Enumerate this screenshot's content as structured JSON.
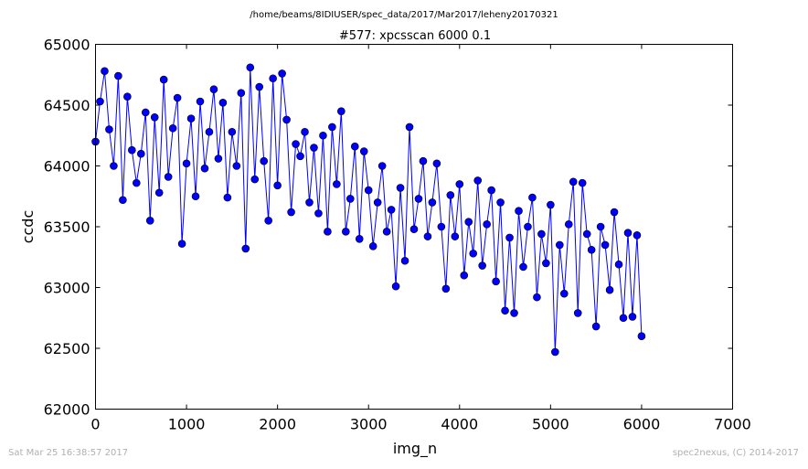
{
  "figure": {
    "suptitle": "/home/beams/8IDIUSER/spec_data/2017/Mar2017/leheny20170321",
    "footer_left": "Sat Mar 25 16:38:57 2017",
    "footer_right": "spec2nexus, (C) 2014-2017"
  },
  "colors": {
    "series": "#0000ff",
    "frame": "#000000",
    "footer": "#b0b0b0"
  },
  "chart_data": {
    "type": "line",
    "title": "#577: xpcsscan 6000 0.1",
    "xlabel": "img_n",
    "ylabel": "ccdc",
    "xlim": [
      0,
      7000
    ],
    "ylim": [
      62000,
      65000
    ],
    "xticks": [
      0,
      1000,
      2000,
      3000,
      4000,
      5000,
      6000,
      7000
    ],
    "yticks": [
      62000,
      62500,
      63000,
      63500,
      64000,
      64500,
      65000
    ],
    "grid": false,
    "marker": "circle",
    "series": [
      {
        "x": [
          0,
          50,
          100,
          150,
          200,
          250,
          300,
          350,
          400,
          450,
          500,
          550,
          600,
          650,
          700,
          750,
          800,
          850,
          900,
          950,
          1000,
          1050,
          1100,
          1150,
          1200,
          1250,
          1300,
          1350,
          1400,
          1450,
          1500,
          1550,
          1600,
          1650,
          1700,
          1750,
          1800,
          1850,
          1900,
          1950,
          2000,
          2050,
          2100,
          2150,
          2200,
          2250,
          2300,
          2350,
          2400,
          2450,
          2500,
          2550,
          2600,
          2650,
          2700,
          2750,
          2800,
          2850,
          2900,
          2950,
          3000,
          3050,
          3100,
          3150,
          3200,
          3250,
          3300,
          3350,
          3400,
          3450,
          3500,
          3550,
          3600,
          3650,
          3700,
          3750,
          3800,
          3850,
          3900,
          3950,
          4000,
          4050,
          4100,
          4150,
          4200,
          4250,
          4300,
          4350,
          4400,
          4450,
          4500,
          4550,
          4600,
          4650,
          4700,
          4750,
          4800,
          4850,
          4900,
          4950,
          5000,
          5050,
          5100,
          5150,
          5200,
          5250,
          5300,
          5350,
          5400,
          5450,
          5500,
          5550,
          5600,
          5650,
          5700,
          5750,
          5800,
          5850,
          5900,
          5950,
          6000
        ],
        "y": [
          64200,
          64530,
          64780,
          64300,
          64000,
          64740,
          63720,
          64570,
          64130,
          63860,
          64100,
          64440,
          63550,
          64400,
          63780,
          64710,
          63910,
          64310,
          64560,
          63360,
          64020,
          64390,
          63750,
          64530,
          63980,
          64280,
          64630,
          64060,
          64520,
          63740,
          64280,
          64000,
          64600,
          63320,
          64810,
          63890,
          64650,
          64040,
          63550,
          64720,
          63840,
          64760,
          64380,
          63620,
          64180,
          64080,
          64280,
          63700,
          64150,
          63610,
          64250,
          63460,
          64320,
          63850,
          64450,
          63460,
          63730,
          64160,
          63400,
          64120,
          63800,
          63340,
          63700,
          64000,
          63460,
          63640,
          63010,
          63820,
          63220,
          64320,
          63480,
          63730,
          64040,
          63420,
          63700,
          64020,
          63500,
          62990,
          63760,
          63420,
          63850,
          63100,
          63540,
          63280,
          63880,
          63180,
          63520,
          63800,
          63050,
          63700,
          62810,
          63410,
          62790,
          63630,
          63170,
          63500,
          63740,
          62920,
          63440,
          63200,
          63680,
          62470,
          63350,
          62950,
          63520,
          63870,
          62790,
          63860,
          63440,
          63310,
          62680,
          63500,
          63350,
          62980,
          63620,
          63190,
          62750,
          63450,
          62760,
          63430,
          62600
        ]
      }
    ]
  }
}
